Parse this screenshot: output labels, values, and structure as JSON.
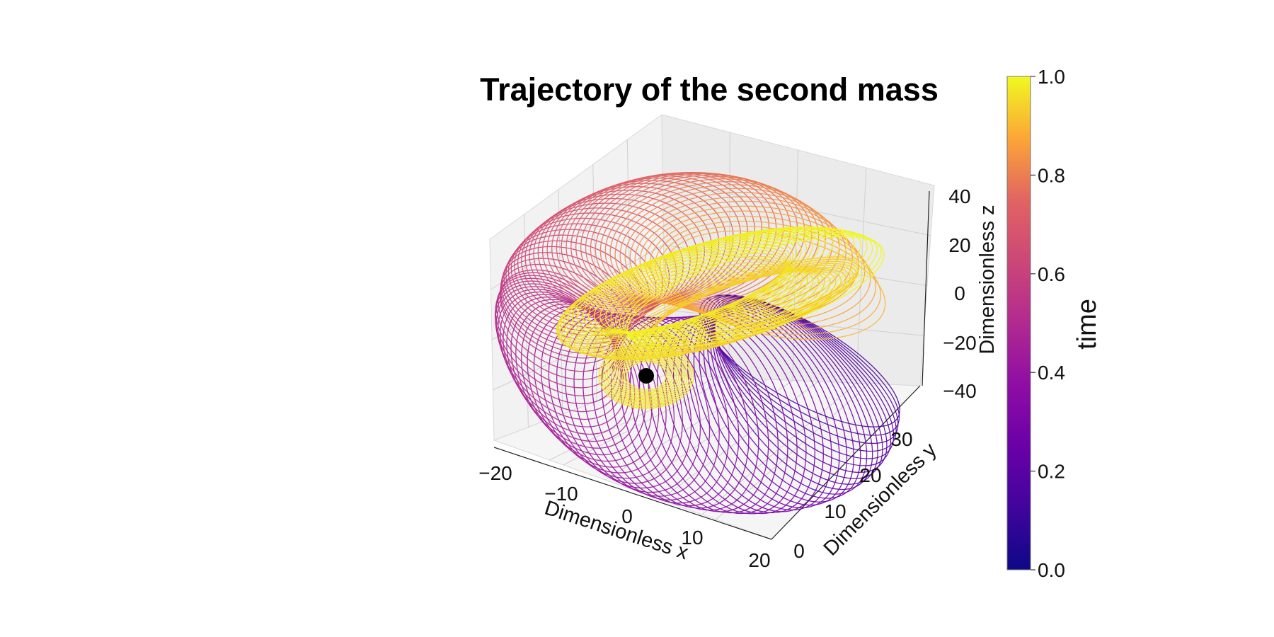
{
  "chart_data": {
    "type": "line",
    "projection": "3d",
    "title": "Trajectory of the second mass",
    "xlabel": "Dimensionless x",
    "ylabel": "Dimensionless y",
    "zlabel": "Dimensionless z",
    "xlim": [
      -20,
      20
    ],
    "ylim": [
      -5,
      38
    ],
    "zlim": [
      -40,
      40
    ],
    "xticks": [
      "−20",
      "−10",
      "0",
      "10",
      "20"
    ],
    "yticks": [
      "0",
      "10",
      "20",
      "30"
    ],
    "zticks": [
      "40",
      "20",
      "0",
      "−20",
      "−40"
    ],
    "grid": true,
    "colormap": "plasma",
    "colorbar": {
      "label": "time",
      "ticks": [
        "0.0",
        "0.2",
        "0.4",
        "0.6",
        "0.8",
        "1.0"
      ],
      "range": [
        0.0,
        1.0
      ]
    },
    "series": [
      {
        "kind": "trajectory",
        "color_by": "time",
        "approx_extent": {
          "x": [
            -20,
            20
          ],
          "y": [
            -2,
            36
          ],
          "z": [
            -30,
            28
          ]
        }
      },
      {
        "kind": "marker",
        "color": "#000000",
        "x": 0,
        "y": 0,
        "z": -15
      }
    ]
  }
}
